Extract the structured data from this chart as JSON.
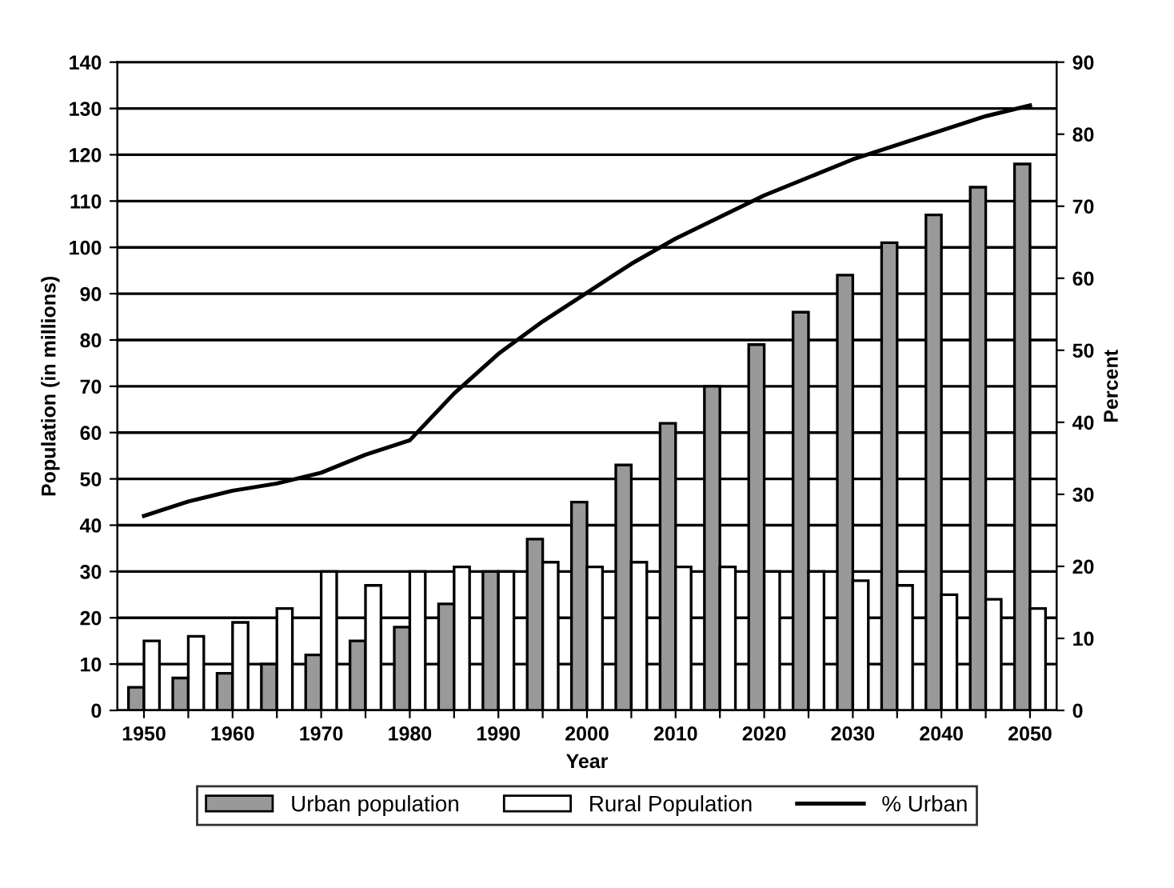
{
  "chart_data": {
    "type": "bar",
    "xlabel": "Year",
    "ylabel": "Population (in millions)",
    "y2label": "Percent",
    "categories": [
      "1950",
      null,
      "1960",
      null,
      "1970",
      null,
      "1980",
      null,
      "1990",
      null,
      "2000",
      null,
      "2010",
      null,
      "2020",
      null,
      "2030",
      null,
      "2040",
      null,
      "2050"
    ],
    "series": [
      {
        "name": "Urban population",
        "color": "#999999",
        "values": [
          5,
          7,
          8,
          10,
          12,
          15,
          18,
          23,
          30,
          37,
          45,
          53,
          62,
          70,
          79,
          86,
          94,
          101,
          107,
          113,
          118
        ]
      },
      {
        "name": "Rural Population",
        "color": "#ffffff",
        "values": [
          15,
          16,
          19,
          22,
          30,
          27,
          30,
          31,
          30,
          32,
          31,
          32,
          31,
          31,
          30,
          30,
          28,
          27,
          25,
          24,
          22
        ]
      },
      {
        "name": "% Urban",
        "type": "line",
        "axis": "y2",
        "color": "#000000",
        "values": [
          27,
          29,
          30.5,
          31.5,
          33,
          35.5,
          37.5,
          44,
          49.5,
          54,
          58,
          62,
          65.5,
          68.5,
          71.5,
          74,
          76.5,
          78.5,
          80.5,
          82.5,
          84
        ]
      }
    ],
    "ylim": [
      0,
      140
    ],
    "yticks": [
      0,
      10,
      20,
      30,
      40,
      50,
      60,
      70,
      80,
      90,
      100,
      110,
      120,
      130,
      140
    ],
    "y2lim": [
      0,
      90
    ],
    "y2ticks": [
      0,
      10,
      20,
      30,
      40,
      50,
      60,
      70,
      80,
      90
    ],
    "grid": "y",
    "legend": "bottom",
    "line_style": "solid",
    "marker": "none"
  }
}
